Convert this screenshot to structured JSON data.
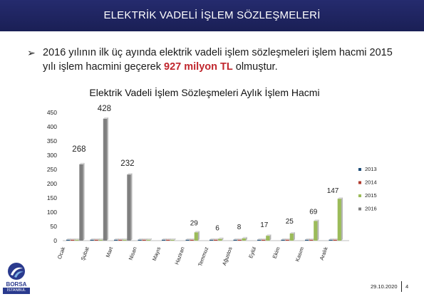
{
  "slide": {
    "title": "ELEKTRİK VADELİ İŞLEM SÖZLEŞMELERİ",
    "bullet_arrow": "➢",
    "bullet_before": "2016 yılının ilk üç ayında elektrik vadeli işlem sözleşmeleri işlem hacmi 2015 yılı işlem hacmini geçerek ",
    "bullet_highlight": "927 milyon TL",
    "bullet_after": " olmuştur.",
    "highlight_color": "#c0262d",
    "logo_text": "BORSA",
    "logo_subtext": "İSTANBUL",
    "footer_date": "29.10.2020",
    "page_number": "4"
  },
  "chart_data": {
    "type": "bar",
    "title": "Elektrik Vadeli İşlem Sözleşmeleri Aylık İşlem Hacmi",
    "xlabel": "",
    "ylabel": "",
    "ylim": [
      0,
      450
    ],
    "yticks": [
      0,
      50,
      100,
      150,
      200,
      250,
      300,
      350,
      400,
      450
    ],
    "grid": false,
    "legend_position": "right",
    "categories": [
      "Ocak",
      "Şubat",
      "Mart",
      "Nisan",
      "Mayıs",
      "Haziran",
      "Temmuz",
      "Ağustos",
      "Eylül",
      "Ekim",
      "Kasım",
      "Aralık"
    ],
    "series": [
      {
        "name": "2013",
        "color": "#1f4e79",
        "values": [
          0,
          0,
          0,
          0,
          0,
          0,
          0,
          0,
          0,
          0,
          0,
          0
        ]
      },
      {
        "name": "2014",
        "color": "#b03a2e",
        "values": [
          0,
          0,
          0,
          0,
          0,
          0,
          0,
          0,
          0,
          0,
          0,
          0
        ]
      },
      {
        "name": "2015",
        "color": "#9bbb59",
        "values": [
          0,
          0,
          0,
          0,
          0,
          29,
          6,
          8,
          17,
          25,
          69,
          147
        ]
      },
      {
        "name": "2016",
        "color": "#7f7f7f",
        "values": [
          268,
          428,
          232,
          null,
          null,
          null,
          null,
          null,
          null,
          null,
          null,
          null
        ]
      }
    ]
  }
}
